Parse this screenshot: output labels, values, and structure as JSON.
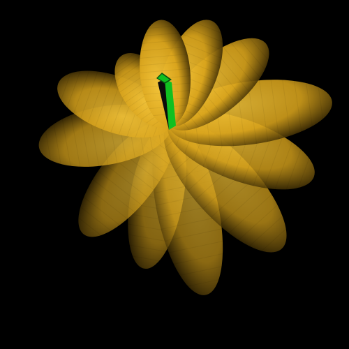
{
  "scene": {
    "subject": "gourd",
    "background_color": "#000000",
    "rib_color": "#d9a41c",
    "rib_highlight_color": "#f4c53a",
    "rib_shadow_color": "#3a2a04",
    "stem_color": "#10c020",
    "stem_dark_color": "#0a5010",
    "rib_count": 12,
    "light_direction": "top"
  }
}
